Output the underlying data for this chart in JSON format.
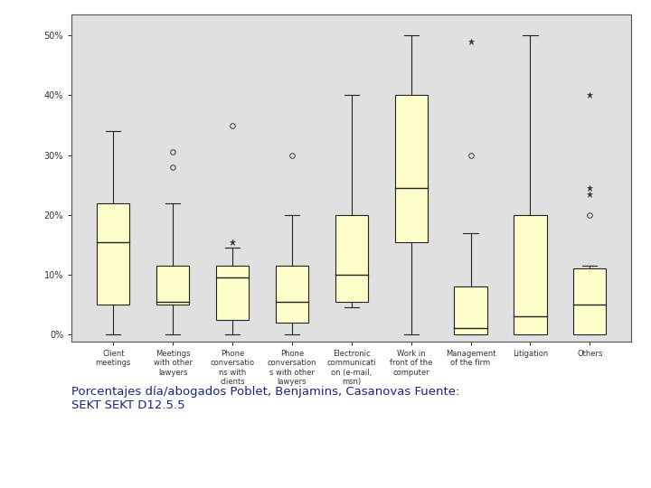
{
  "categories": [
    "Client\nmeetings",
    "Meetings\nwith other\nlawyers",
    "Phone\nconversatio\nns with\nclients",
    "Phone\nconversation\ns with other\nlawyers",
    "Electronic\ncommunicati\non (e-mail,\nmsn)",
    "Work in\nfront of the\ncomputer",
    "Management\nof the firm",
    "Litigation",
    "Others"
  ],
  "boxes": [
    {
      "whislo": 0.0,
      "q1": 0.05,
      "med": 0.155,
      "q3": 0.22,
      "whishi": 0.34,
      "fliers_circle": [],
      "fliers_star": []
    },
    {
      "whislo": 0.0,
      "q1": 0.05,
      "med": 0.055,
      "q3": 0.115,
      "whishi": 0.22,
      "fliers_circle": [
        0.28,
        0.305
      ],
      "fliers_star": []
    },
    {
      "whislo": 0.0,
      "q1": 0.025,
      "med": 0.095,
      "q3": 0.115,
      "whishi": 0.145,
      "fliers_circle": [
        0.35
      ],
      "fliers_star": [
        0.155
      ]
    },
    {
      "whislo": 0.0,
      "q1": 0.02,
      "med": 0.055,
      "q3": 0.115,
      "whishi": 0.2,
      "fliers_circle": [
        0.3
      ],
      "fliers_star": []
    },
    {
      "whislo": 0.045,
      "q1": 0.055,
      "med": 0.1,
      "q3": 0.2,
      "whishi": 0.4,
      "fliers_circle": [],
      "fliers_star": []
    },
    {
      "whislo": 0.0,
      "q1": 0.155,
      "med": 0.245,
      "q3": 0.4,
      "whishi": 0.5,
      "fliers_circle": [],
      "fliers_star": []
    },
    {
      "whislo": 0.0,
      "q1": 0.0,
      "med": 0.01,
      "q3": 0.08,
      "whishi": 0.17,
      "fliers_circle": [
        0.3
      ],
      "fliers_star": [
        0.49
      ]
    },
    {
      "whislo": 0.0,
      "q1": 0.0,
      "med": 0.03,
      "q3": 0.2,
      "whishi": 0.5,
      "fliers_circle": [],
      "fliers_star": []
    },
    {
      "whislo": 0.0,
      "q1": 0.0,
      "med": 0.05,
      "q3": 0.11,
      "whishi": 0.115,
      "fliers_circle": [
        0.2
      ],
      "fliers_star": [
        0.245,
        0.235,
        0.4
      ]
    }
  ],
  "ylim": [
    -0.012,
    0.535
  ],
  "yticks": [
    0.0,
    0.1,
    0.2,
    0.3,
    0.4,
    0.5
  ],
  "yticklabels": [
    "0%",
    "10%",
    "20%",
    "30%",
    "40%",
    "50%"
  ],
  "box_facecolor": "#ffffcc",
  "box_edgecolor": "#222222",
  "median_color": "#222222",
  "whisker_color": "#222222",
  "cap_color": "#222222",
  "plot_bg_color": "#e0e0e0",
  "fig_bg_color": "#ffffff",
  "caption_color": "#1a237e",
  "caption": "Porcentajes día/abogados Poblet, Benjamins, Casanovas Fuente:\nSEKT SEKT D12.5.5"
}
